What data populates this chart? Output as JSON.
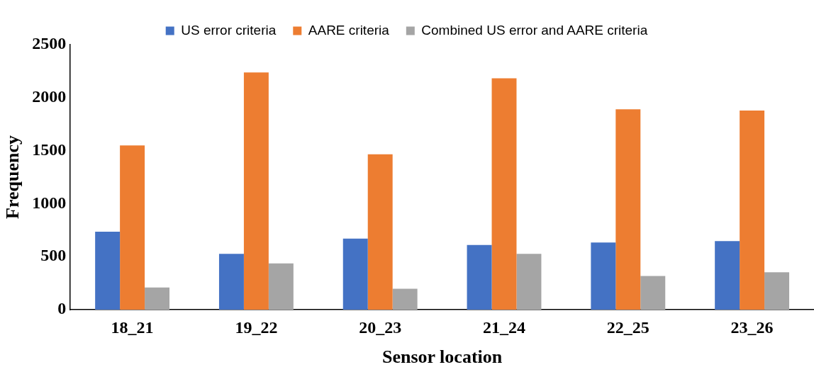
{
  "chart_data": {
    "type": "bar",
    "xlabel": "Sensor location",
    "ylabel": "Frequency",
    "categories": [
      "18_21",
      "19_22",
      "20_23",
      "21_24",
      "22_25",
      "23_26"
    ],
    "series": [
      {
        "name": "US error criteria",
        "color": "#4472c4",
        "values": [
          736,
          526,
          670,
          610,
          634,
          646
        ]
      },
      {
        "name": "AARE criteria",
        "color": "#ed7d31",
        "values": [
          1549,
          2237,
          1465,
          2183,
          1890,
          1878
        ]
      },
      {
        "name": "Combined US error and AARE criteria",
        "color": "#a5a5a5",
        "values": [
          209,
          437,
          197,
          526,
          317,
          353
        ]
      }
    ],
    "ylim": [
      0,
      2500
    ],
    "yticks": [
      0,
      500,
      1000,
      1500,
      2000,
      2500
    ],
    "grid": false,
    "legend": "top"
  }
}
